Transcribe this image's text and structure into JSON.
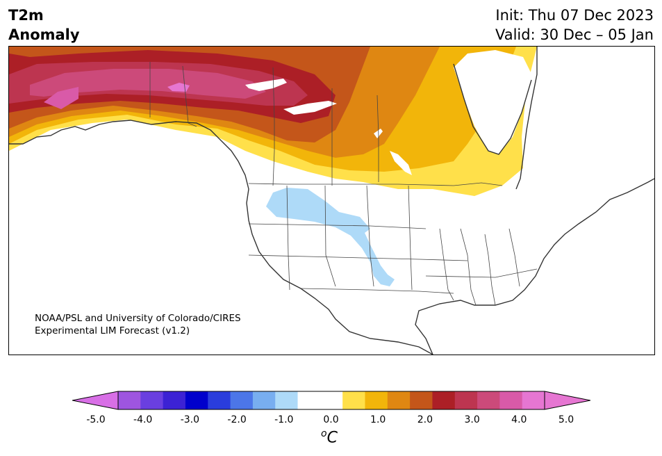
{
  "header": {
    "var_line1": "T2m",
    "var_line2": "Anomaly",
    "init": "Init: Thu 07 Dec 2023",
    "valid": "Valid: 30 Dec – 05 Jan"
  },
  "credit": {
    "line1": "NOAA/PSL and University of Colorado/CIRES",
    "line2": "Experimental LIM Forecast (v1.2)"
  },
  "colorbar": {
    "ticks": [
      "-5.0",
      "-4.0",
      "-3.0",
      "-2.0",
      "-1.0",
      "0.0",
      "1.0",
      "2.0",
      "3.0",
      "4.0",
      "5.0"
    ],
    "unit_base": "C",
    "unit_super": "o",
    "levels": [
      "<-5.0",
      "-5.0",
      "-4.5",
      "-4.0",
      "-3.5",
      "-3.0",
      "-2.5",
      "-2.0",
      "-1.5",
      "-1.0",
      "-0.5",
      "0.5",
      "1.0",
      "1.5",
      "2.0",
      "2.5",
      "3.0",
      "3.5",
      "4.0",
      "4.5",
      ">5.0"
    ],
    "colors": [
      "#d86fe6",
      "#9e55e0",
      "#6a3fe0",
      "#3c22d4",
      "#0000cc",
      "#2a3ddc",
      "#4c76e8",
      "#78aef0",
      "#aedaf8",
      "#ffffff",
      "#ffffff",
      "#ffe04a",
      "#f2b50a",
      "#df8712",
      "#c4561a",
      "#ac1f26",
      "#bd3550",
      "#cc4a7a",
      "#d95aa8",
      "#e676d2",
      "#e676d2"
    ]
  },
  "map": {
    "region": "North America",
    "anomaly_features": [
      "warm anomaly over Alaska, western and central Canada",
      "weak cold anomaly over northern Rockies and southern Plains"
    ]
  }
}
